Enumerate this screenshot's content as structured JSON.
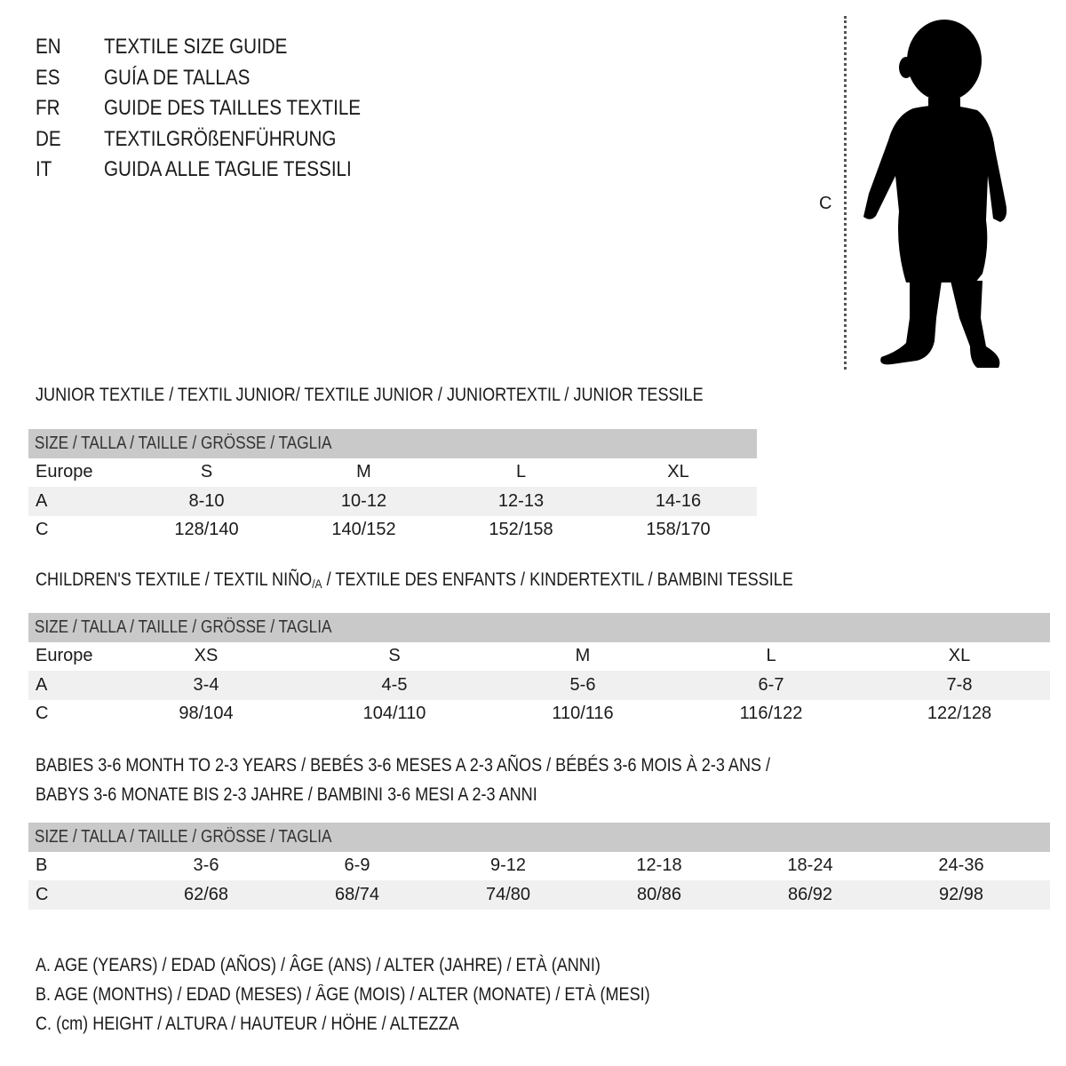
{
  "languages": [
    {
      "code": "EN",
      "title": "TEXTILE SIZE GUIDE"
    },
    {
      "code": "ES",
      "title": "GUÍA DE TALLAS"
    },
    {
      "code": "FR",
      "title": "GUIDE DES TAILLES TEXTILE"
    },
    {
      "code": "DE",
      "title": "TEXTILGRÖßENFÜHRUNG"
    },
    {
      "code": "IT",
      "title": "GUIDA ALLE TAGLIE TESSILI"
    }
  ],
  "figure": {
    "measure_label": "C",
    "icon": "child-silhouette"
  },
  "colors": {
    "header_row": "#c9c9c9",
    "alt_row": "#f0f0f0"
  },
  "sections": [
    {
      "title": "JUNIOR TEXTILE / TEXTIL JUNIOR/ TEXTILE JUNIOR / JUNIORTEXTIL / JUNIOR TESSILE",
      "header": "SIZE / TALLA / TAILLE / GRÖSSE / TAGLIA",
      "rows": [
        {
          "label": "Europe",
          "values": [
            "S",
            "M",
            "L",
            "XL"
          ]
        },
        {
          "label": "A",
          "values": [
            "8-10",
            "10-12",
            "12-13",
            "14-16"
          ]
        },
        {
          "label": "C",
          "values": [
            "128/140",
            "140/152",
            "152/158",
            "158/170"
          ]
        }
      ]
    },
    {
      "title": "CHILDREN'S TEXTILE / TEXTIL NIÑO",
      "title_sub": "/A",
      "title_rest": " / TEXTILE DES ENFANTS / KINDERTEXTIL / BAMBINI TESSILE",
      "header": "SIZE / TALLA / TAILLE / GRÖSSE / TAGLIA",
      "rows": [
        {
          "label": "Europe",
          "values": [
            "XS",
            "S",
            "M",
            "L",
            "XL"
          ]
        },
        {
          "label": "A",
          "values": [
            "3-4",
            "4-5",
            "5-6",
            "6-7",
            "7-8"
          ]
        },
        {
          "label": "C",
          "values": [
            "98/104",
            "104/110",
            "110/116",
            "116/122",
            "122/128"
          ]
        }
      ]
    },
    {
      "title": "BABIES 3-6 MONTH TO 2-3 YEARS / BEBÉS 3-6 MESES A 2-3 AÑOS / BÉBÉS 3-6 MOIS À 2-3 ANS /",
      "title2": "BABYS 3-6 MONATE BIS 2-3 JAHRE / BAMBINI 3-6 MESI A 2-3 ANNI",
      "header": "SIZE / TALLA / TAILLE / GRÖSSE / TAGLIA",
      "rows": [
        {
          "label": "B",
          "values": [
            "3-6",
            "6-9",
            "9-12",
            "12-18",
            "18-24",
            "24-36"
          ]
        },
        {
          "label": "C",
          "values": [
            "62/68",
            "68/74",
            "74/80",
            "80/86",
            "86/92",
            "92/98"
          ]
        }
      ]
    }
  ],
  "legend": [
    "A. AGE (YEARS) / EDAD (AÑOS) / ÂGE (ANS) / ALTER (JAHRE) / ETÀ (ANNI)",
    "B. AGE (MONTHS) / EDAD (MESES) / ÂGE (MOIS) / ALTER (MONATE) / ETÀ (MESI)",
    "C. (cm) HEIGHT / ALTURA / HAUTEUR / HÖHE / ALTEZZA"
  ]
}
